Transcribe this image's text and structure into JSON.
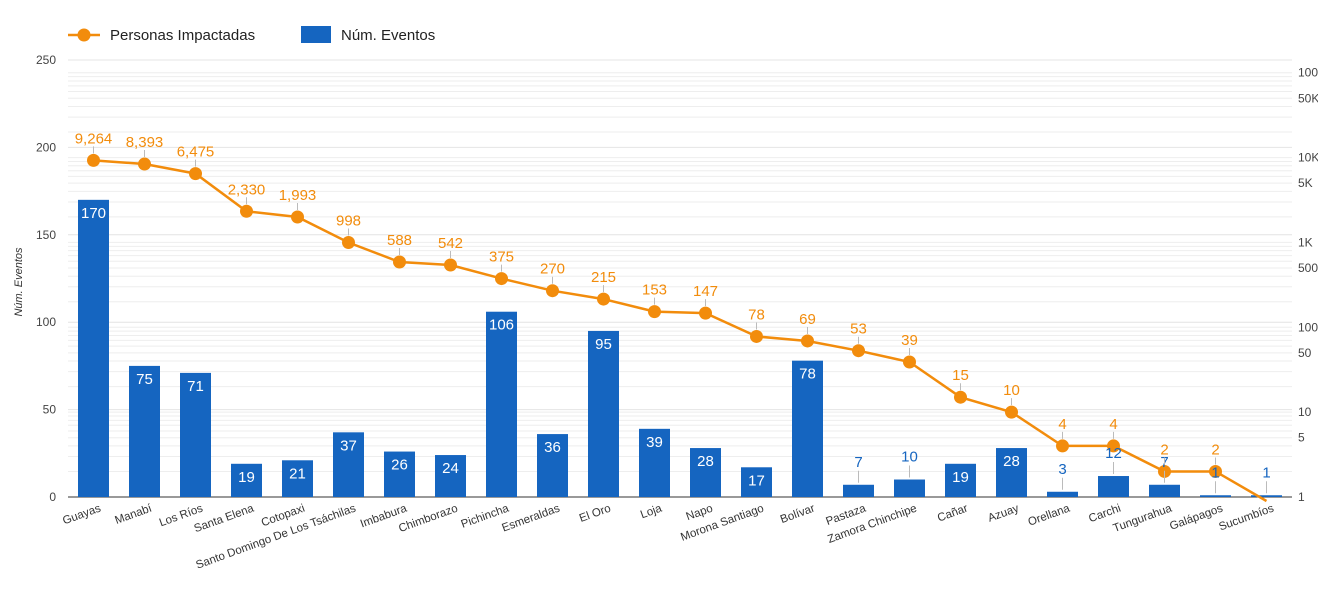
{
  "chart_data": {
    "type": "bar",
    "categories": [
      "Guayas",
      "Manabí",
      "Los Ríos",
      "Santa Elena",
      "Cotopaxi",
      "Santo Domingo De Los Tsáchilas",
      "Imbabura",
      "Chimborazo",
      "Pichincha",
      "Esmeraldas",
      "El Oro",
      "Loja",
      "Napo",
      "Morona Santiago",
      "Bolívar",
      "Pastaza",
      "Zamora Chinchipe",
      "Cañar",
      "Azuay",
      "Orellana",
      "Carchi",
      "Tungurahua",
      "Galápagos",
      "Sucumbíos"
    ],
    "series": [
      {
        "name": "Núm. Eventos",
        "type": "bar",
        "axis": "left",
        "values": [
          170,
          75,
          71,
          19,
          21,
          37,
          26,
          24,
          106,
          36,
          95,
          39,
          28,
          17,
          78,
          7,
          10,
          19,
          28,
          3,
          12,
          7,
          1,
          1
        ],
        "labels": [
          "170",
          "75",
          "71",
          "19",
          "21",
          "37",
          "26",
          "24",
          "106",
          "36",
          "95",
          "39",
          "28",
          "17",
          "78",
          "7",
          "10",
          "19",
          "28",
          "3",
          "12",
          "7",
          "1",
          "1"
        ]
      },
      {
        "name": "Personas Impactadas",
        "type": "line",
        "axis": "right",
        "scale": "log",
        "values": [
          9264,
          8393,
          6475,
          2330,
          1993,
          998,
          588,
          542,
          375,
          270,
          215,
          153,
          147,
          78,
          69,
          53,
          39,
          15,
          10,
          4,
          4,
          2,
          2,
          null
        ],
        "labels": [
          "9,264",
          "8,393",
          "6,475",
          "2,330",
          "1,993",
          "998",
          "588",
          "542",
          "375",
          "270",
          "215",
          "153",
          "147",
          "78",
          "69",
          "53",
          "39",
          "15",
          "10",
          "4",
          "4",
          "2",
          "2",
          ""
        ]
      }
    ],
    "ylabel": "Núm. Eventos",
    "ylim": [
      0,
      250
    ],
    "yticks": [
      "0",
      "50",
      "100",
      "150",
      "200",
      "250"
    ],
    "y2ticks": [
      {
        "value": 1,
        "label": "1"
      },
      {
        "value": 5,
        "label": "5"
      },
      {
        "value": 10,
        "label": "10"
      },
      {
        "value": 50,
        "label": "50"
      },
      {
        "value": 100,
        "label": "100"
      },
      {
        "value": 500,
        "label": "500"
      },
      {
        "value": 1000,
        "label": "1K"
      },
      {
        "value": 5000,
        "label": "5K"
      },
      {
        "value": 10000,
        "label": "10K"
      },
      {
        "value": 50000,
        "label": "50K"
      },
      {
        "value": 100000,
        "label": "100K"
      }
    ],
    "legend_position": "top-left",
    "colors": {
      "bar": "#1565c0",
      "line": "#f28c0c",
      "grid": "#e4e4e4"
    }
  }
}
